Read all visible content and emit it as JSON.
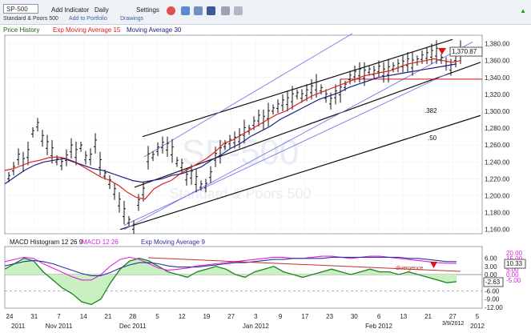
{
  "toolbar": {
    "symbol": "SP-500",
    "add_indicator": "Add Indicator",
    "period": "Daily",
    "settings": "Settings",
    "subtitle": "Standard & Poors 500",
    "add_portfolio": "Add to Portfolio",
    "drawings": "Drawings"
  },
  "legend_price": {
    "price_history": "Price History",
    "ema": "Exp Moving Average 15",
    "ma": "Moving Average 30"
  },
  "legend_macd": {
    "macd_hist": "MACD Histogram 12 26 9",
    "macd_line": "MACD 12 26",
    "ema9": "Exp Moving Average 9"
  },
  "watermark": {
    "symbol": "SP-500",
    "name": "Standard & Poors 500"
  },
  "annotations": {
    "fib382": ".382",
    "fib50": ".50",
    "divergence": "divergence",
    "date_label": "3/9/2012"
  },
  "price_value": "1,370.87",
  "macd_values": {
    "hist": "-2.63",
    "line": "10.33"
  },
  "colors": {
    "price": "#111111",
    "ema": "#e02020",
    "ma": "#202080",
    "channel": "#7878e8",
    "trend": "#111111",
    "macd": "#e020e0",
    "signal": "#3030a0",
    "hist_fill": "#c8f0c0",
    "hist_line": "#208020",
    "arrow": "#e01010"
  },
  "chart_data": [
    {
      "type": "line",
      "title": "",
      "x_ticks": [
        "24",
        "31",
        "7",
        "14",
        "21",
        "28",
        "5",
        "12",
        "19",
        "27",
        "3",
        "9",
        "17",
        "23",
        "30",
        "6",
        "13",
        "21",
        "27",
        "5"
      ],
      "x_month_labels": [
        "2011",
        "Nov 2011",
        "Dec 2011",
        "Jan 2012",
        "Feb 2012",
        "2012"
      ],
      "y_ticks": [
        "1,380.00",
        "1,360.00",
        "1,340.00",
        "1,320.00",
        "1,300.00",
        "1,280.00",
        "1,260.00",
        "1,240.00",
        "1,220.00",
        "1,200.00",
        "1,180.00",
        "1,160.00"
      ],
      "ylim": [
        1155,
        1390
      ],
      "grid": true,
      "series": [
        {
          "name": "Price History",
          "kind": "ohlc",
          "values": [
            1222,
            1232,
            1246,
            1240,
            1250,
            1275,
            1284,
            1268,
            1260,
            1252,
            1242,
            1238,
            1245,
            1256,
            1250,
            1258,
            1245,
            1246,
            1262,
            1238,
            1225,
            1216,
            1205,
            1192,
            1180,
            1170,
            1163,
            1192,
            1205,
            1245,
            1247,
            1255,
            1260,
            1258,
            1253,
            1240,
            1236,
            1222,
            1225,
            1218,
            1212,
            1212,
            1225,
            1246,
            1252,
            1260,
            1264,
            1266,
            1268,
            1276,
            1278,
            1286,
            1292,
            1290,
            1296,
            1302,
            1306,
            1310,
            1312,
            1316,
            1320,
            1318,
            1322,
            1326,
            1330,
            1326,
            1318,
            1312,
            1320,
            1324,
            1330,
            1340,
            1344,
            1346,
            1344,
            1348,
            1346,
            1350,
            1346,
            1348,
            1352,
            1354,
            1356,
            1358,
            1356,
            1360,
            1364,
            1366,
            1368,
            1370,
            1362,
            1356,
            1352,
            1364,
            1370
          ]
        },
        {
          "name": "Exp Moving Average 15",
          "values": [
            1230,
            1232,
            1236,
            1240,
            1242,
            1245,
            1246,
            1244,
            1240,
            1234,
            1228,
            1222,
            1218,
            1212,
            1204,
            1198,
            1196,
            1208,
            1214,
            1218,
            1226,
            1232,
            1238,
            1244,
            1252,
            1262,
            1266,
            1272,
            1278,
            1284,
            1290,
            1296,
            1300,
            1306,
            1312,
            1318,
            1322,
            1326,
            1330,
            1334,
            1338,
            1342,
            1344,
            1346,
            1348,
            1352,
            1356,
            1358,
            1360,
            1362,
            1360,
            1358,
            1360
          ]
        },
        {
          "name": "Moving Average 30",
          "values": [
            1214,
            1222,
            1230,
            1236,
            1240,
            1242,
            1244,
            1240,
            1236,
            1232,
            1230,
            1226,
            1222,
            1218,
            1216,
            1218,
            1220,
            1224,
            1226,
            1230,
            1234,
            1242,
            1248,
            1256,
            1262,
            1270,
            1276,
            1282,
            1290,
            1296,
            1302,
            1308,
            1314,
            1318,
            1322,
            1328,
            1332,
            1336,
            1340,
            1342,
            1344,
            1346,
            1348,
            1350,
            1352,
            1354,
            1356
          ]
        }
      ],
      "horizontal_line": 1338
    },
    {
      "type": "line",
      "title": "",
      "y_ticks_left": [
        "6.00",
        "3.00",
        "0.00",
        "-3.00",
        "-6.00",
        "-9.00",
        "-12.00"
      ],
      "y_ticks_right": [
        "20.00",
        "15.00",
        "10.00",
        "5.00",
        "0.00",
        "-5.00"
      ],
      "series": [
        {
          "name": "MACD Histogram 12 26 9",
          "values": [
            2,
            4,
            6,
            5,
            1,
            -2,
            -5,
            -7,
            -10,
            -11,
            -9,
            -3,
            2,
            5,
            6,
            5,
            3,
            1,
            0,
            -1,
            1,
            2,
            3,
            2,
            0,
            -1,
            1,
            2,
            3,
            1,
            0,
            -1,
            0,
            1,
            2,
            1,
            0,
            1,
            2,
            1,
            1,
            0,
            1,
            0,
            -1,
            -2,
            -3,
            -2.63
          ]
        },
        {
          "name": "MACD 12 26",
          "values": [
            12,
            14,
            16,
            15,
            10,
            6,
            2,
            -2,
            -5,
            -5,
            0,
            8,
            14,
            16,
            14,
            10,
            6,
            4,
            5,
            6,
            8,
            9,
            10,
            11,
            12,
            13,
            14,
            15,
            16,
            16,
            15,
            15,
            16,
            17,
            17,
            16,
            15,
            16,
            17,
            17,
            16,
            15,
            14,
            13,
            12,
            11,
            10.5,
            10.33
          ]
        },
        {
          "name": "Exp Moving Average 9",
          "values": [
            8,
            10,
            12,
            13,
            12,
            10,
            7,
            4,
            1,
            -1,
            -1,
            2,
            6,
            9,
            11,
            11,
            10,
            8,
            7,
            7,
            7,
            8,
            9,
            10,
            11,
            11,
            12,
            13,
            14,
            14,
            15,
            15,
            15,
            15,
            16,
            16,
            16,
            16,
            16,
            16,
            16,
            16,
            15,
            15,
            14,
            13,
            12,
            12
          ]
        }
      ]
    }
  ]
}
